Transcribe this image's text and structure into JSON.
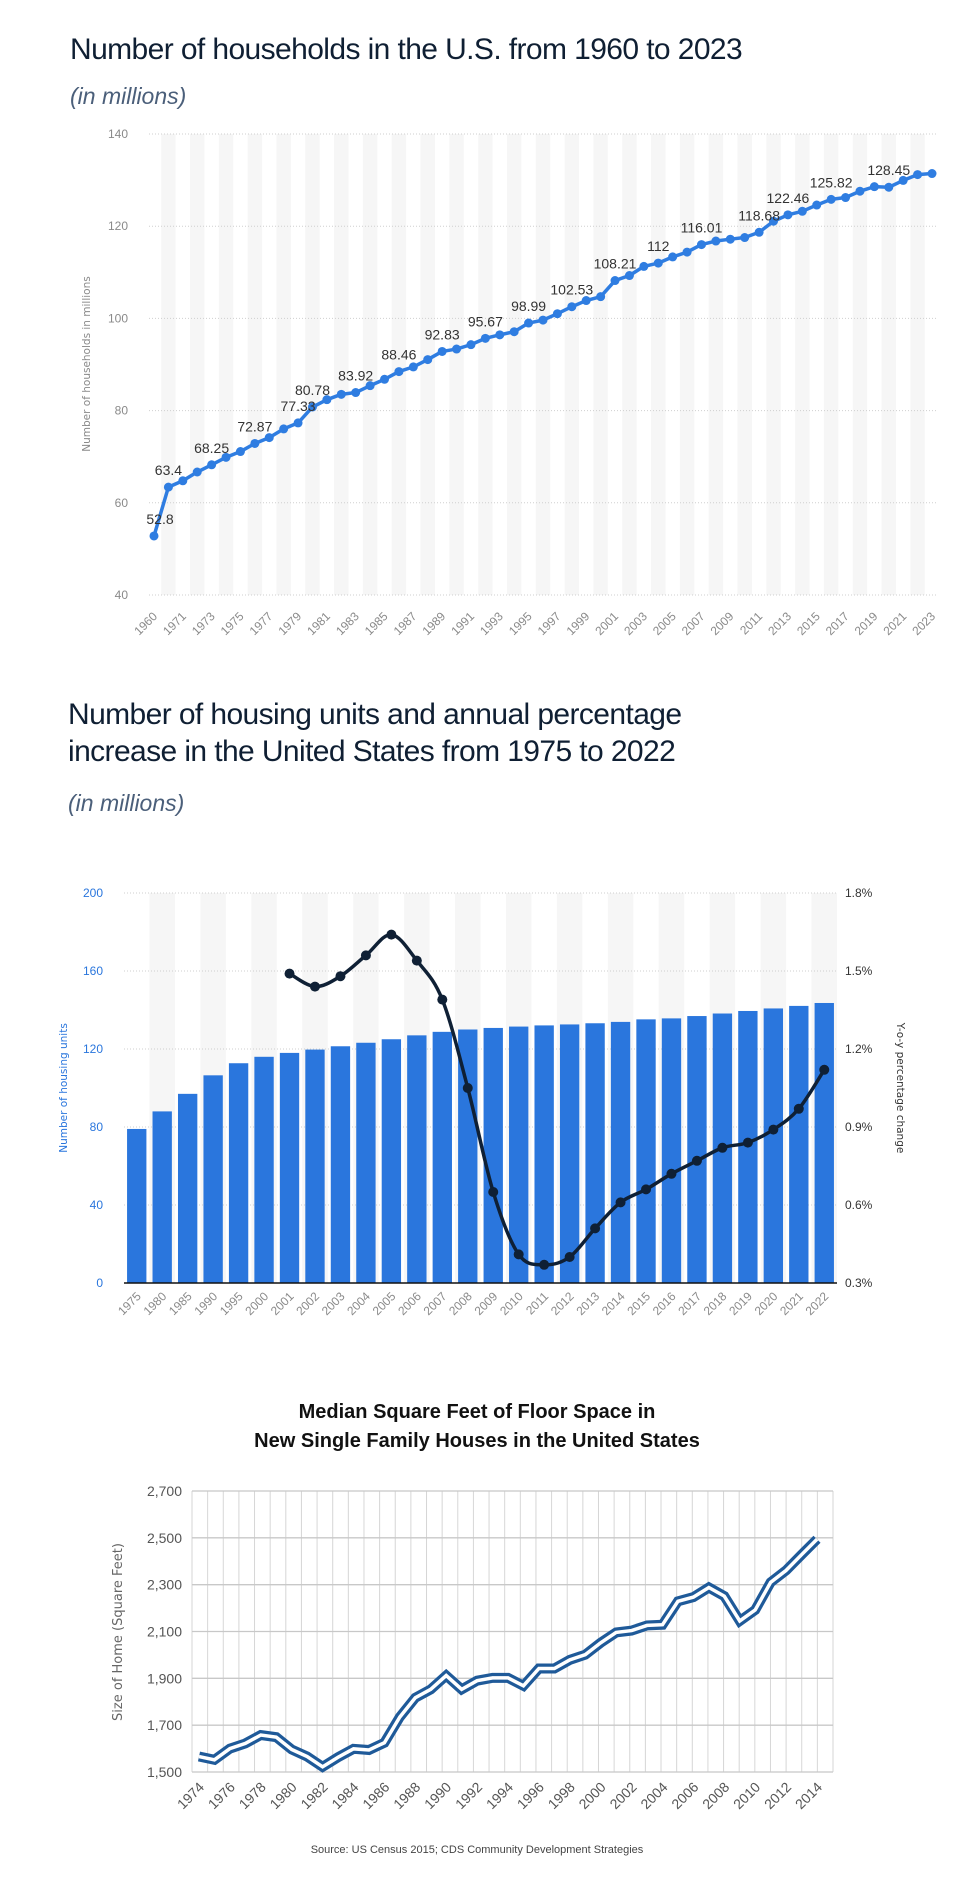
{
  "chart_data": [
    {
      "type": "line",
      "title": "Number of households in the U.S. from 1960 to 2023",
      "subtitle": "(in millions)",
      "xlabel": "",
      "ylabel": "Number of households in millions",
      "ylim": [
        40,
        140
      ],
      "yticks": [
        40,
        60,
        80,
        100,
        120,
        140
      ],
      "grid": true,
      "color": "#2f7de1",
      "categories": [
        1960,
        1970,
        1971,
        1972,
        1973,
        1974,
        1975,
        1976,
        1977,
        1978,
        1979,
        1980,
        1981,
        1982,
        1983,
        1984,
        1985,
        1986,
        1987,
        1988,
        1989,
        1990,
        1991,
        1992,
        1993,
        1994,
        1995,
        1996,
        1997,
        1998,
        1999,
        2000,
        2001,
        2002,
        2003,
        2004,
        2005,
        2006,
        2007,
        2008,
        2009,
        2010,
        2011,
        2012,
        2013,
        2014,
        2015,
        2016,
        2017,
        2018,
        2019,
        2020,
        2021,
        2022,
        2023
      ],
      "xtick_labels": [
        "1960",
        "1971",
        "1973",
        "1975",
        "1977",
        "1979",
        "1981",
        "1983",
        "1985",
        "1987",
        "1989",
        "1991",
        "1993",
        "1995",
        "1997",
        "1999",
        "2001",
        "2003",
        "2005",
        "2007",
        "2009",
        "2011",
        "2013",
        "2015",
        "2017",
        "2019",
        "2021",
        "2023"
      ],
      "values": [
        52.8,
        63.4,
        64.78,
        66.68,
        68.25,
        69.86,
        71.12,
        72.87,
        74.14,
        76.03,
        77.33,
        80.78,
        82.37,
        83.53,
        83.92,
        85.41,
        86.79,
        88.46,
        89.48,
        91.07,
        92.83,
        93.35,
        94.31,
        95.67,
        96.43,
        97.11,
        98.99,
        99.63,
        101.02,
        102.53,
        103.87,
        104.71,
        108.21,
        109.3,
        111.28,
        112,
        113.34,
        114.38,
        116.01,
        116.78,
        117.18,
        117.54,
        118.68,
        121.08,
        122.46,
        123.23,
        124.59,
        125.82,
        126.22,
        127.59,
        128.58,
        128.45,
        129.93,
        131.2,
        131.43
      ],
      "data_labels": [
        {
          "year": 1960,
          "text": "52.8"
        },
        {
          "year": 1970,
          "text": "63.4"
        },
        {
          "year": 1973,
          "text": "68.25"
        },
        {
          "year": 1976,
          "text": "72.87"
        },
        {
          "year": 1979,
          "text": "77.33"
        },
        {
          "year": 1980,
          "text": "80.78"
        },
        {
          "year": 1983,
          "text": "83.92"
        },
        {
          "year": 1986,
          "text": "88.46"
        },
        {
          "year": 1989,
          "text": "92.83"
        },
        {
          "year": 1992,
          "text": "95.67"
        },
        {
          "year": 1995,
          "text": "98.99"
        },
        {
          "year": 1998,
          "text": "102.53"
        },
        {
          "year": 2001,
          "text": "108.21"
        },
        {
          "year": 2004,
          "text": "112"
        },
        {
          "year": 2007,
          "text": "116.01"
        },
        {
          "year": 2011,
          "text": "118.68"
        },
        {
          "year": 2013,
          "text": "122.46"
        },
        {
          "year": 2016,
          "text": "125.82"
        },
        {
          "year": 2020,
          "text": "128.45"
        }
      ]
    },
    {
      "type": "bar+line",
      "title_lines": [
        "Number of housing units and annual percentage",
        "increase  in the United States from 1975 to 2022"
      ],
      "subtitle": "(in millions)",
      "categories": [
        "1975",
        "1980",
        "1985",
        "1990",
        "1995",
        "2000",
        "2001",
        "2002",
        "2003",
        "2004",
        "2005",
        "2006",
        "2007",
        "2008",
        "2009",
        "2010",
        "2011",
        "2012",
        "2013",
        "2014",
        "2015",
        "2016",
        "2017",
        "2018",
        "2019",
        "2020",
        "2021",
        "2022"
      ],
      "ylabel_left": "Number of housing units",
      "ylabel_right": "Y-o-y percentage change",
      "ylim_left": [
        0,
        200
      ],
      "yticks_left": [
        "0",
        "40",
        "80",
        "120",
        "160",
        "200"
      ],
      "ylim_right": [
        0.3,
        1.8
      ],
      "yticks_right": [
        "0.3%",
        "0.6%",
        "0.9%",
        "1.2%",
        "1.5%",
        "1.8%"
      ],
      "grid": true,
      "bar_color": "#2a76dd",
      "line_color": "#0f2035",
      "series": [
        {
          "type": "bar",
          "values": [
            79,
            88,
            97,
            106.5,
            112.7,
            116,
            118,
            119.7,
            121.4,
            123.2,
            125,
            127,
            128.8,
            130,
            130.8,
            131.5,
            132.1,
            132.6,
            133.2,
            133.9,
            135.2,
            135.7,
            136.9,
            138.2,
            139.5,
            140.8,
            142.1,
            143.6
          ]
        },
        {
          "type": "line",
          "values": [
            null,
            null,
            null,
            null,
            null,
            null,
            1.49,
            1.44,
            1.48,
            1.56,
            1.64,
            1.54,
            1.39,
            1.05,
            0.65,
            0.41,
            0.37,
            0.4,
            0.51,
            0.61,
            0.66,
            0.72,
            0.77,
            0.82,
            0.84,
            0.89,
            0.97,
            1.12
          ]
        }
      ]
    },
    {
      "type": "line",
      "title_lines": [
        "Median Square Feet of Floor Space in",
        "New Single Family Houses in the United States"
      ],
      "ylabel": "Size of Home (Square Feet)",
      "xlabel": "",
      "ylim": [
        1500,
        2700
      ],
      "yticks": [
        "1,500",
        "1,700",
        "1,900",
        "2,100",
        "2,300",
        "2,500",
        "2,700"
      ],
      "grid": true,
      "color": "#1f5a99",
      "x": [
        1974,
        1975,
        1976,
        1977,
        1978,
        1979,
        1980,
        1981,
        1982,
        1983,
        1984,
        1985,
        1986,
        1987,
        1988,
        1989,
        1990,
        1991,
        1992,
        1993,
        1994,
        1995,
        1996,
        1997,
        1998,
        1999,
        2000,
        2001,
        2002,
        2003,
        2004,
        2005,
        2006,
        2007,
        2008,
        2009,
        2010,
        2011,
        2012,
        2013,
        2014
      ],
      "xtick_labels": [
        "1974",
        "1976",
        "1978",
        "1980",
        "1982",
        "1984",
        "1986",
        "1988",
        "1990",
        "1992",
        "1994",
        "1996",
        "1998",
        "2000",
        "2002",
        "2004",
        "2006",
        "2008",
        "2010",
        "2012",
        "2014"
      ],
      "values": [
        1566,
        1552,
        1600,
        1622,
        1658,
        1649,
        1596,
        1566,
        1522,
        1563,
        1599,
        1594,
        1625,
        1735,
        1817,
        1853,
        1912,
        1853,
        1890,
        1902,
        1902,
        1868,
        1942,
        1942,
        1979,
        2001,
        2052,
        2096,
        2104,
        2126,
        2129,
        2229,
        2247,
        2288,
        2251,
        2145,
        2192,
        2310,
        2361,
        2428,
        2494
      ],
      "source": "Source: US Census 2015; CDS Community Development Strategies"
    }
  ]
}
